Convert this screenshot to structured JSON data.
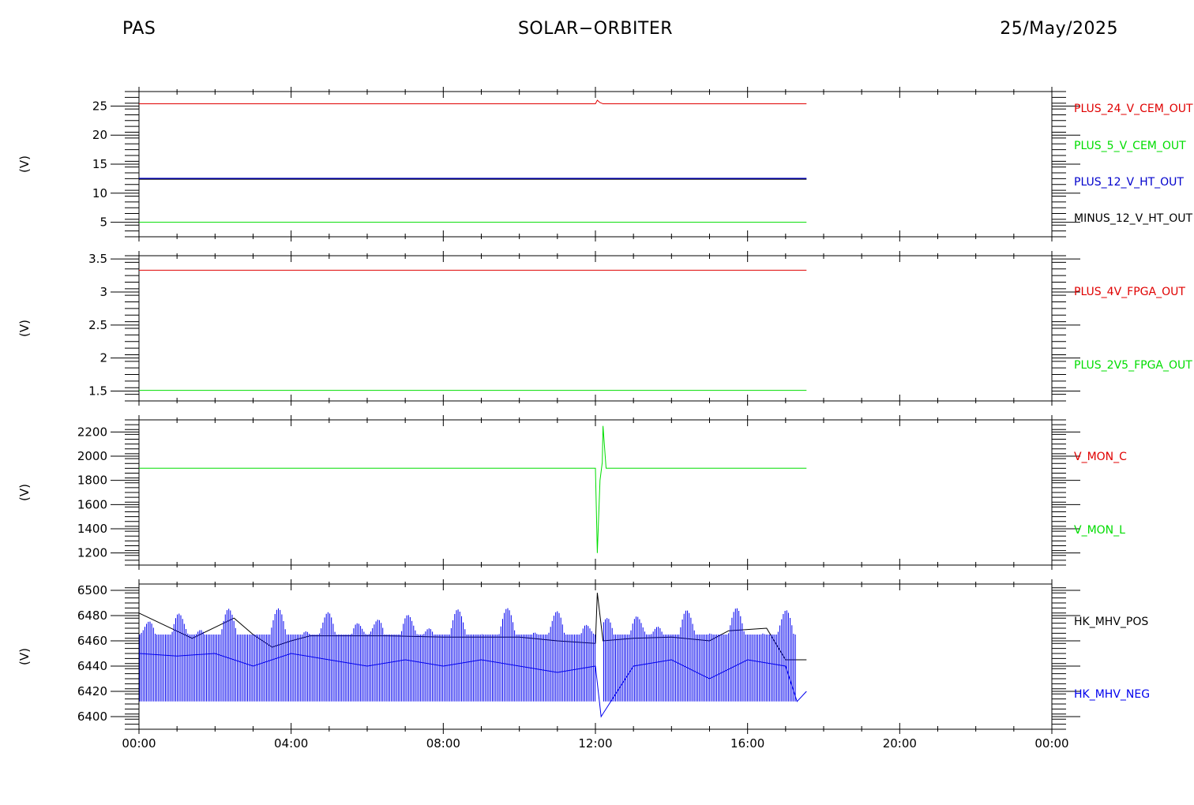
{
  "header": {
    "left": "PAS",
    "center": "SOLAR−ORBITER",
    "right": "25/May/2025"
  },
  "chart_data": [
    {
      "type": "line",
      "ylabel": "(V)",
      "ylim": [
        2.5,
        27.5
      ],
      "yticks": [
        5,
        10,
        15,
        20,
        25
      ],
      "xlim": [
        "00:00",
        "24:00"
      ],
      "series": [
        {
          "name": "PLUS_24_V_CEM_OUT",
          "color": "#e00000",
          "x": [
            0,
            12.0,
            12.05,
            12.12,
            12.2,
            17.55
          ],
          "values": [
            25.4,
            25.4,
            26.0,
            25.6,
            25.4,
            25.4
          ]
        },
        {
          "name": "PLUS_5_V_CEM_OUT",
          "color": "#00dd00",
          "x": [
            0,
            17.55
          ],
          "values": [
            5.0,
            5.0
          ]
        },
        {
          "name": "PLUS_12_V_HT_OUT",
          "color": "#0000cc",
          "x": [
            0,
            17.55
          ],
          "values": [
            12.5,
            12.5
          ]
        },
        {
          "name": "MINUS_12_V_HT_OUT",
          "color": "#000000",
          "x": [
            0,
            17.55
          ],
          "values": [
            12.4,
            12.4
          ]
        }
      ]
    },
    {
      "type": "line",
      "ylabel": "(V)",
      "ylim": [
        1.35,
        3.55
      ],
      "yticks": [
        1.5,
        2.0,
        2.5,
        3.0,
        3.5
      ],
      "xlim": [
        "00:00",
        "24:00"
      ],
      "series": [
        {
          "name": "PLUS_4V_FPGA_OUT",
          "color": "#e00000",
          "x": [
            0,
            17.55
          ],
          "values": [
            3.33,
            3.33
          ]
        },
        {
          "name": "PLUS_2V5_FPGA_OUT",
          "color": "#00dd00",
          "x": [
            0,
            17.55
          ],
          "values": [
            1.51,
            1.51
          ]
        }
      ]
    },
    {
      "type": "line",
      "ylabel": "(V)",
      "ylim": [
        1100,
        2300
      ],
      "yticks": [
        1200,
        1400,
        1600,
        1800,
        2000,
        2200
      ],
      "xlim": [
        "00:00",
        "24:00"
      ],
      "series": [
        {
          "name": "V_MON_C",
          "color": "#e00000",
          "x": [],
          "values": []
        },
        {
          "name": "V_MON_L",
          "color": "#00dd00",
          "x": [
            0,
            12.0,
            12.05,
            12.12,
            12.18,
            12.2,
            12.28,
            17.55
          ],
          "values": [
            1900,
            1900,
            1200,
            1800,
            1950,
            2250,
            1900,
            1900
          ]
        }
      ]
    },
    {
      "type": "line",
      "ylabel": "(V)",
      "ylim": [
        6390,
        6505
      ],
      "yticks": [
        6400,
        6420,
        6440,
        6460,
        6480,
        6500
      ],
      "xlim": [
        "00:00",
        "24:00"
      ],
      "series": [
        {
          "name": "HK_MHV_POS",
          "color": "#000000",
          "x": [
            0,
            1.4,
            2.5,
            3.0,
            3.5,
            4.0,
            4.5,
            6.5,
            8.0,
            10.0,
            11.0,
            12.0,
            12.05,
            12.2,
            13.0,
            14.0,
            15.0,
            15.5,
            16.5,
            17.0,
            17.55
          ],
          "values": [
            6482,
            6462,
            6478,
            6465,
            6455,
            6460,
            6464,
            6464,
            6463,
            6463,
            6460,
            6458,
            6498,
            6460,
            6462,
            6463,
            6460,
            6468,
            6470,
            6445,
            6445
          ]
        },
        {
          "name": "HK_MHV_NEG",
          "color": "#0000ee",
          "x": [
            0,
            1.0,
            2.0,
            3.0,
            4.0,
            5.0,
            6.0,
            7.0,
            8.0,
            9.0,
            10.0,
            11.0,
            12.0,
            12.15,
            13.0,
            14.0,
            15.0,
            16.0,
            17.0,
            17.3,
            17.55
          ],
          "values": [
            6450,
            6448,
            6450,
            6440,
            6450,
            6445,
            6440,
            6445,
            6440,
            6445,
            6440,
            6435,
            6440,
            6400,
            6440,
            6445,
            6430,
            6445,
            6440,
            6412,
            6420
          ]
        }
      ]
    }
  ]
}
